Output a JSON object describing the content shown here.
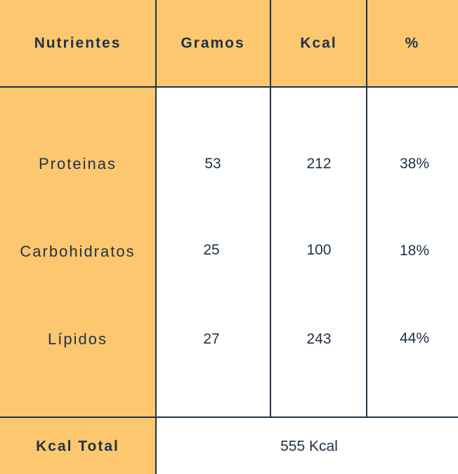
{
  "headers": {
    "nutrient": "Nutrientes",
    "grams": "Gramos",
    "kcal": "Kcal",
    "percent": "%"
  },
  "rows": [
    {
      "name": "Proteinas",
      "grams": "53",
      "kcal": "212",
      "percent": "38%"
    },
    {
      "name": "Carbohidratos",
      "grams": "25",
      "kcal": "100",
      "percent": "18%"
    },
    {
      "name": "Lípidos",
      "grams": "27",
      "kcal": "243",
      "percent": "44%"
    }
  ],
  "footer": {
    "label": "Kcal Total",
    "value": "555 Kcal"
  },
  "colors": {
    "accent": "#fcc76f",
    "text": "#1f3247",
    "background": "#ffffff"
  }
}
